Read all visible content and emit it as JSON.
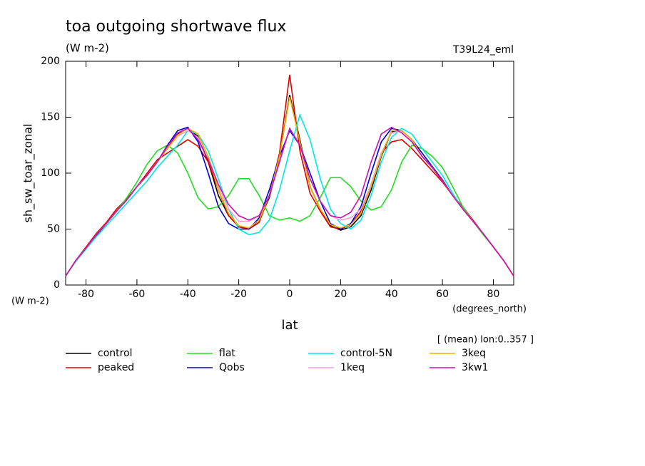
{
  "chart_data": {
    "type": "line",
    "title": "toa outgoing shortwave flux",
    "subtitle": "(W m-2)",
    "dataset": "T39L24_eml",
    "ylabel": "sh_sw_toar_zonal",
    "yunits": "(W m-2)",
    "xlabel": "lat",
    "xunits": "(degrees_north)",
    "note": "[ (mean) lon:0..357 ]",
    "x": [
      -88,
      -84,
      -80,
      -76,
      -72,
      -68,
      -64,
      -60,
      -56,
      -52,
      -48,
      -44,
      -40,
      -36,
      -32,
      -28,
      -24,
      -20,
      -16,
      -12,
      -8,
      -4,
      0,
      4,
      8,
      12,
      16,
      20,
      24,
      28,
      32,
      36,
      40,
      44,
      48,
      52,
      56,
      60,
      64,
      68,
      72,
      76,
      80,
      84,
      88
    ],
    "xlim": [
      -88,
      88
    ],
    "xticks": [
      -80,
      -60,
      -40,
      -20,
      0,
      20,
      40,
      60,
      80
    ],
    "ylim": [
      0,
      200
    ],
    "yticks": [
      0,
      50,
      100,
      150,
      200
    ],
    "grid": false,
    "series": [
      {
        "name": "control",
        "color": "#000000",
        "values": [
          8,
          22,
          33,
          45,
          55,
          66,
          76,
          88,
          98,
          110,
          122,
          135,
          140,
          133,
          110,
          80,
          62,
          52,
          50,
          58,
          78,
          115,
          170,
          130,
          88,
          68,
          53,
          49,
          52,
          62,
          85,
          115,
          137,
          138,
          130,
          115,
          105,
          93,
          80,
          68,
          57,
          46,
          34,
          22,
          8
        ]
      },
      {
        "name": "peaked",
        "color": "#e00000",
        "values": [
          8,
          22,
          34,
          46,
          56,
          68,
          77,
          88,
          100,
          112,
          118,
          124,
          130,
          124,
          110,
          85,
          62,
          52,
          50,
          56,
          80,
          118,
          188,
          120,
          82,
          66,
          52,
          50,
          54,
          66,
          90,
          118,
          128,
          130,
          122,
          112,
          102,
          92,
          80,
          70,
          58,
          46,
          34,
          22,
          8
        ]
      },
      {
        "name": "flat",
        "color": "#22dd22",
        "values": [
          8,
          22,
          33,
          44,
          55,
          66,
          78,
          92,
          108,
          120,
          125,
          118,
          100,
          78,
          68,
          70,
          80,
          95,
          95,
          80,
          62,
          58,
          60,
          57,
          62,
          78,
          96,
          96,
          88,
          75,
          67,
          70,
          85,
          110,
          125,
          122,
          115,
          105,
          88,
          70,
          57,
          45,
          34,
          22,
          8
        ]
      },
      {
        "name": "Qobs",
        "color": "#0000cc",
        "values": [
          8,
          22,
          33,
          44,
          55,
          66,
          76,
          88,
          98,
          110,
          125,
          138,
          141,
          128,
          100,
          70,
          55,
          50,
          50,
          60,
          85,
          115,
          138,
          125,
          100,
          75,
          55,
          50,
          55,
          70,
          100,
          128,
          140,
          138,
          130,
          118,
          106,
          94,
          80,
          68,
          57,
          46,
          34,
          22,
          8
        ]
      },
      {
        "name": "control-5N",
        "color": "#00e5e5",
        "values": [
          8,
          21,
          32,
          43,
          53,
          63,
          73,
          83,
          93,
          105,
          115,
          125,
          138,
          135,
          120,
          95,
          68,
          50,
          45,
          47,
          58,
          85,
          120,
          152,
          130,
          95,
          68,
          55,
          50,
          58,
          80,
          110,
          132,
          140,
          135,
          122,
          110,
          98,
          82,
          68,
          57,
          46,
          34,
          22,
          8
        ]
      },
      {
        "name": "1keq",
        "color": "#f0a0d8",
        "values": [
          8,
          22,
          33,
          45,
          55,
          66,
          76,
          88,
          98,
          110,
          122,
          133,
          138,
          132,
          115,
          88,
          68,
          57,
          57,
          62,
          80,
          110,
          140,
          125,
          95,
          75,
          62,
          58,
          60,
          68,
          90,
          118,
          136,
          138,
          130,
          115,
          105,
          93,
          80,
          68,
          57,
          46,
          34,
          22,
          8
        ]
      },
      {
        "name": "3keq",
        "color": "#f0b000",
        "values": [
          8,
          22,
          33,
          45,
          55,
          66,
          76,
          88,
          98,
          110,
          122,
          134,
          140,
          135,
          115,
          85,
          64,
          53,
          51,
          58,
          80,
          115,
          168,
          128,
          88,
          68,
          54,
          51,
          54,
          64,
          88,
          116,
          138,
          138,
          130,
          115,
          105,
          93,
          80,
          68,
          57,
          46,
          34,
          22,
          8
        ]
      },
      {
        "name": "3kw1",
        "color": "#d010b0",
        "values": [
          8,
          22,
          33,
          45,
          55,
          66,
          76,
          88,
          98,
          110,
          124,
          136,
          140,
          130,
          112,
          90,
          72,
          62,
          58,
          62,
          80,
          110,
          140,
          125,
          95,
          75,
          62,
          60,
          65,
          80,
          110,
          135,
          141,
          136,
          128,
          115,
          105,
          93,
          80,
          68,
          57,
          46,
          34,
          22,
          8
        ]
      }
    ]
  }
}
